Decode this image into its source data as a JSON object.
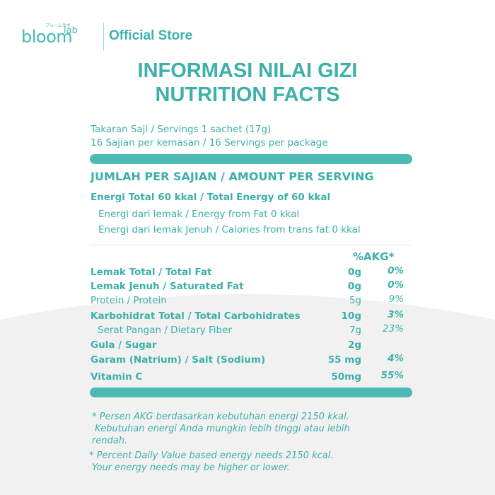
{
  "header": {
    "logo": "bloom",
    "logo_sup": "lab",
    "logo_small": "ブルームラボ",
    "store": "Official Store"
  },
  "title": [
    "INFORMASI NILAI GIZI",
    "NUTRITION FACTS"
  ],
  "serving": [
    "Takaran Saji / Servings 1 sachet (17g)",
    "16 Sajian per kemasan / 16 Servings per package"
  ],
  "amount_header": "JUMLAH PER SAJIAN / AMOUNT PER SERVING",
  "energy": {
    "total": "Energi Total 60 kkal / Total Energy of 60 kkal",
    "sub": [
      "Energi dari lemak / Energy from Fat 0 kkal",
      "Energi dari lemak Jenuh / Calories from trans fat 0 kkal"
    ]
  },
  "akg_header": "%AKG*",
  "rows": [
    [
      "Lemak Total / Total Fat",
      "0g",
      "0%"
    ],
    [
      "Lemak Jenuh / Saturated Fat",
      "0g",
      "0%"
    ],
    [
      "Protein / Protein",
      "5g",
      "9%"
    ],
    [
      "Karbohidrat Total / Total Carbohidrates",
      "10g",
      "3%"
    ],
    [
      "Serat Pangan / Dietary Fiber",
      "7g",
      "23%"
    ],
    [
      "Gula / Sugar",
      "2g"
    ],
    [
      "Garam (Natrium) / Salt (Sodium)",
      "55 mg",
      "4%"
    ],
    [
      "Vitamin C",
      "50mg",
      "55%"
    ]
  ],
  "notes": [
    [
      "* Persen AKG berdasarkan kebutuhan energi 2150 kkal.",
      " Kebutuhan energi Anda mungkin lebih tinggi atau lebih",
      "rendah."
    ],
    [
      "* Percent Daily Value based energy needs 2150 kcal.",
      "Your energy needs may be higher or lower."
    ]
  ]
}
